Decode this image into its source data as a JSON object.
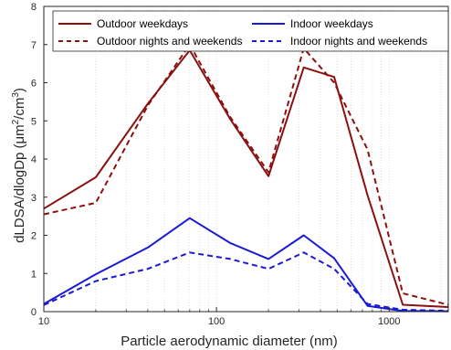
{
  "chart_data": {
    "type": "line",
    "xlabel": "Particle aerodynamic diameter (nm)",
    "ylabel_main": "dLDSA/dlogDp (μm",
    "ylabel_sup1": "2",
    "ylabel_mid": "/cm",
    "ylabel_sup2": "3",
    "ylabel_end": ")",
    "x_scale": "log",
    "xlim": [
      10,
      2200
    ],
    "ylim": [
      0,
      8
    ],
    "x_ticks": [
      10,
      100,
      1000
    ],
    "x_tick_labels": [
      "10",
      "100",
      "1000"
    ],
    "y_ticks": [
      0,
      1,
      2,
      3,
      4,
      5,
      6,
      7,
      8
    ],
    "y_tick_labels": [
      "0",
      "1",
      "2",
      "3",
      "4",
      "5",
      "6",
      "7",
      "8"
    ],
    "grid_x_minor": true,
    "legend_position": "top",
    "series": [
      {
        "name": "Outdoor weekdays",
        "color": "#8b1010",
        "style": "solid",
        "x": [
          10,
          20,
          40,
          70,
          120,
          200,
          320,
          480,
          750,
          1200,
          2200
        ],
        "y": [
          2.7,
          3.52,
          5.45,
          6.85,
          5.05,
          3.55,
          6.4,
          6.15,
          3.05,
          0.18,
          0.12
        ]
      },
      {
        "name": "Outdoor nights and weekends",
        "color": "#8b1010",
        "style": "dashed",
        "x": [
          10,
          20,
          40,
          70,
          120,
          200,
          320,
          480,
          750,
          1200,
          2200
        ],
        "y": [
          2.55,
          2.85,
          5.4,
          7.0,
          5.1,
          3.65,
          6.9,
          6.0,
          4.25,
          0.48,
          0.18
        ]
      },
      {
        "name": "Indoor weekdays",
        "color": "#1a1ad6",
        "style": "solid",
        "x": [
          10,
          20,
          40,
          70,
          120,
          200,
          320,
          480,
          750,
          1200,
          2200
        ],
        "y": [
          0.2,
          0.98,
          1.68,
          2.45,
          1.8,
          1.38,
          2.0,
          1.4,
          0.15,
          0.02,
          0.01
        ]
      },
      {
        "name": "Indoor nights and weekends",
        "color": "#1a1ad6",
        "style": "dashed",
        "x": [
          10,
          20,
          40,
          70,
          120,
          200,
          320,
          480,
          750,
          1200,
          2200
        ],
        "y": [
          0.17,
          0.8,
          1.12,
          1.55,
          1.38,
          1.12,
          1.55,
          1.12,
          0.2,
          0.05,
          0.02
        ]
      }
    ]
  }
}
